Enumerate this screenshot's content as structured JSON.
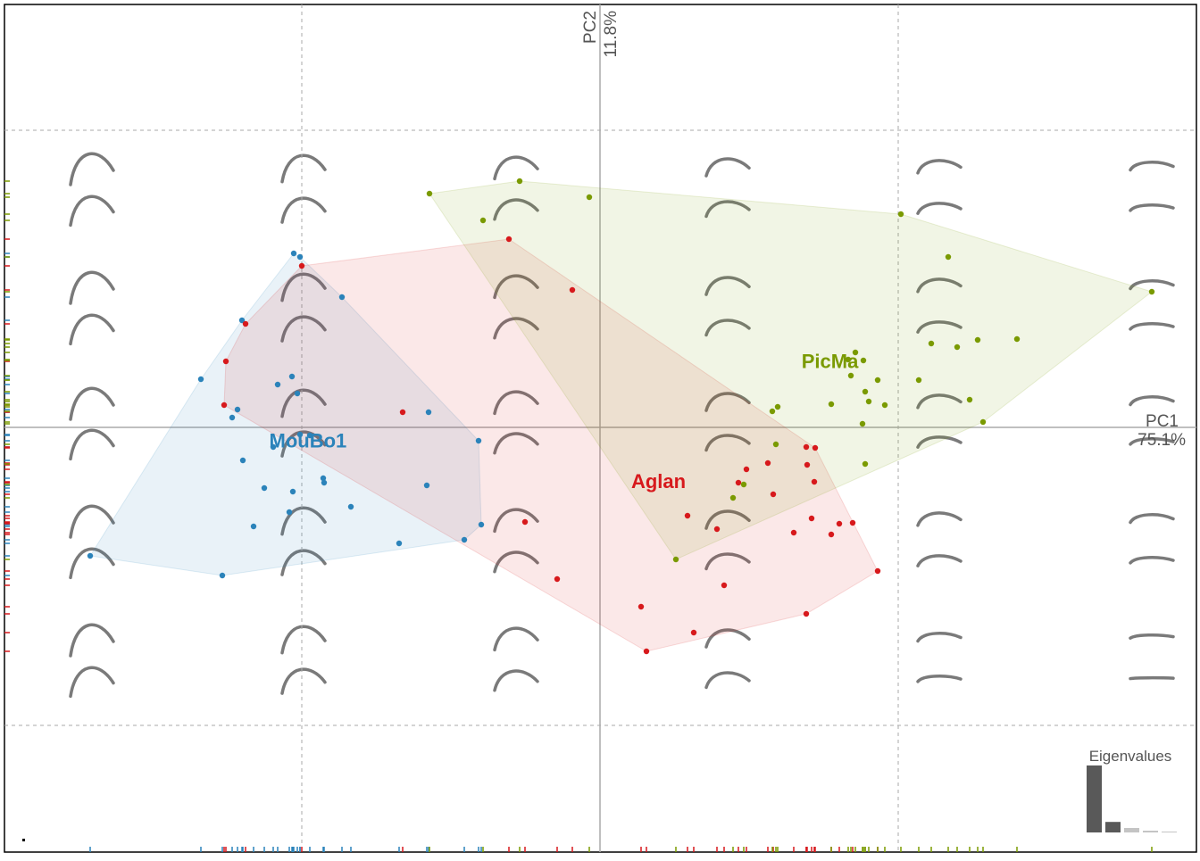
{
  "chart_data": {
    "type": "scatter",
    "xlabel": "PC1",
    "xlabel_pct": "75.1%",
    "ylabel": "PC2",
    "ylabel_pct": "11.8%",
    "xlim": [
      -667,
      668
    ],
    "ylim": [
      -476,
      474
    ],
    "grid": {
      "x": [
        -334,
        334
      ],
      "y": [
        -334,
        333
      ]
    },
    "hulls": true,
    "rug": true,
    "series": [
      {
        "name": "MouBo1",
        "color": "#2b83ba",
        "x": [
          -343,
          -336,
          -289,
          -401,
          -447,
          -345,
          -361,
          -339,
          -406,
          -412,
          -192,
          -336,
          -325,
          -366,
          -136,
          -400,
          -310,
          -309,
          -376,
          -344,
          -194,
          -279,
          -348,
          -388,
          -133,
          -152,
          -225,
          -571,
          -423
        ],
        "values": [
          195,
          191,
          146,
          120,
          54,
          57,
          48,
          38,
          20,
          11,
          17,
          -8,
          -9,
          -22,
          -15,
          -37,
          -57,
          -62,
          -68,
          -72,
          -65,
          -89,
          -95,
          -111,
          -109,
          -126,
          -130,
          -144,
          -166
        ]
      },
      {
        "name": "Aglan",
        "color": "#d7191c",
        "x": [
          -102,
          -334,
          -31,
          -397,
          -419,
          -421,
          -221,
          231,
          241,
          188,
          232,
          164,
          155,
          240,
          194,
          98,
          237,
          268,
          283,
          -84,
          131,
          217,
          259,
          311,
          -48,
          139,
          46,
          231,
          105,
          52
        ],
        "values": [
          211,
          181,
          154,
          116,
          74,
          25,
          17,
          -22,
          -23,
          -40,
          -42,
          -47,
          -62,
          -61,
          -75,
          -99,
          -102,
          -108,
          -107,
          -106,
          -114,
          -118,
          -120,
          -161,
          -170,
          -177,
          -201,
          -209,
          -230,
          -251
        ]
      },
      {
        "name": "PicMa",
        "color": "#7a9a01",
        "x": [
          -90,
          -191,
          -12,
          -131,
          337,
          390,
          618,
          467,
          423,
          371,
          400,
          286,
          278,
          295,
          281,
          311,
          357,
          297,
          301,
          259,
          319,
          414,
          199,
          193,
          294,
          429,
          197,
          297,
          161,
          149,
          85
        ],
        "values": [
          276,
          262,
          258,
          232,
          239,
          191,
          152,
          99,
          98,
          94,
          90,
          84,
          76,
          75,
          58,
          53,
          53,
          40,
          29,
          26,
          25,
          31,
          23,
          18,
          4,
          6,
          -19,
          -41,
          -64,
          -79,
          -148
        ]
      }
    ],
    "eigenvalues": {
      "title": "Eigenvalues",
      "values": [
        75.1,
        11.8,
        5,
        2,
        1
      ],
      "colors": [
        "#595959",
        "#595959",
        "#c4c4c4",
        "#c4c4c4",
        "#c4c4c4"
      ]
    }
  }
}
